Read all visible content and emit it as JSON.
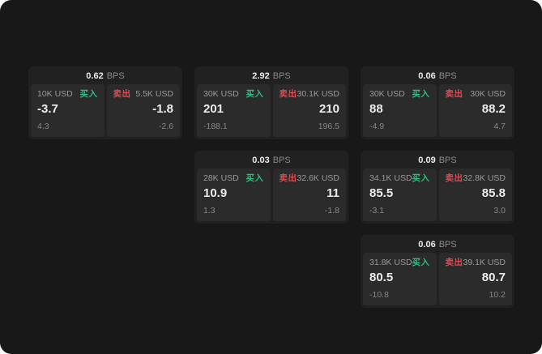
{
  "labels": {
    "bps": "BPS",
    "buy": "买入",
    "sell": "卖出"
  },
  "accent_colors": {
    "buy_green": "#2ebd85",
    "sell_red": "#e5484d",
    "background": "#181818",
    "panel": "#2b2b2b"
  },
  "cards": [
    {
      "bps": "0.62",
      "left": {
        "amount": "10K USD",
        "price": "-3.7",
        "delta": "4.3"
      },
      "right": {
        "amount": "5.5K USD",
        "price": "-1.8",
        "delta": "-2.6"
      }
    },
    {
      "bps": "2.92",
      "left": {
        "amount": "30K USD",
        "price": "201",
        "delta": "-188.1"
      },
      "right": {
        "amount": "30.1K USD",
        "price": "210",
        "delta": "196.5"
      }
    },
    {
      "bps": "0.06",
      "left": {
        "amount": "30K USD",
        "price": "88",
        "delta": "-4.9"
      },
      "right": {
        "amount": "30K USD",
        "price": "88.2",
        "delta": "4.7"
      }
    },
    {
      "bps": "0.03",
      "left": {
        "amount": "28K USD",
        "price": "10.9",
        "delta": "1.3"
      },
      "right": {
        "amount": "32.6K USD",
        "price": "11",
        "delta": "-1.8"
      }
    },
    {
      "bps": "0.09",
      "left": {
        "amount": "34.1K USD",
        "price": "85.5",
        "delta": "-3.1"
      },
      "right": {
        "amount": "32.8K USD",
        "price": "85.8",
        "delta": "3.0"
      }
    },
    {
      "bps": "0.06",
      "left": {
        "amount": "31.8K USD",
        "price": "80.5",
        "delta": "-10.8"
      },
      "right": {
        "amount": "39.1K USD",
        "price": "80.7",
        "delta": "10.2"
      }
    }
  ]
}
